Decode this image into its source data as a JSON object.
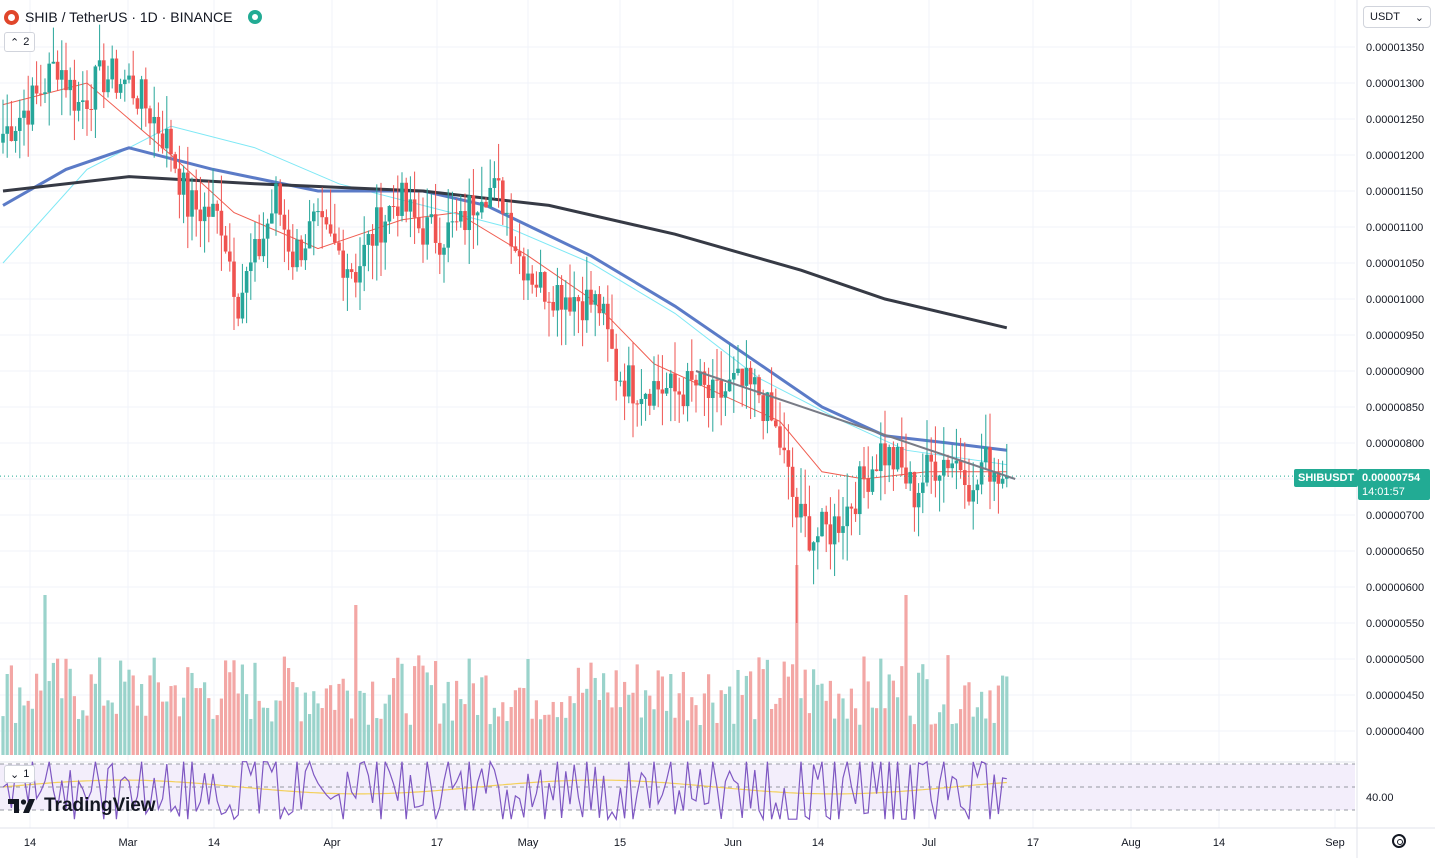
{
  "header": {
    "symbol_title": "SHIB / TetherUS · 1D · BINANCE",
    "indicator_count": "2",
    "rsi_count": "1",
    "currency": "USDT",
    "logo_text": "TradingView"
  },
  "price_tag": {
    "symbol": "SHIBUSDT",
    "price": "0.00000754",
    "countdown": "14:01:57"
  },
  "colors": {
    "up": "#26a69a",
    "down": "#ef5350",
    "ma_fast": "#f05d50",
    "ma_cyan": "#7ee8f5",
    "ma_blue": "#5b7bc7",
    "ma_black": "#363a45",
    "trendline": "#787b86",
    "rsi_line": "#7e57c2",
    "rsi_ma": "#f3d05a"
  },
  "chart_data": {
    "type": "candlestick",
    "x_axis_labels": [
      "14",
      "Mar",
      "14",
      "Apr",
      "17",
      "May",
      "15",
      "Jun",
      "14",
      "Jul",
      "17",
      "Aug",
      "14",
      "Sep"
    ],
    "price_axis_labels": [
      "0.00001350",
      "0.00001300",
      "0.00001250",
      "0.00001200",
      "0.00001150",
      "0.00001100",
      "0.00001050",
      "0.00001000",
      "0.00000950",
      "0.00000900",
      "0.00000850",
      "0.00000800",
      "0.00000750",
      "0.00000700",
      "0.00000650",
      "0.00000600",
      "0.00000550",
      "0.00000500",
      "0.00000450",
      "0.00000400"
    ],
    "rsi_axis_label": "40.00",
    "last_price": 7.54e-06,
    "close_path": [
      [
        0,
        1.23e-05
      ],
      [
        8,
        1.28e-05
      ],
      [
        13,
        1.33e-05
      ],
      [
        18,
        1.27e-05
      ],
      [
        24,
        1.31e-05
      ],
      [
        30,
        1.3e-05
      ],
      [
        35,
        1.26e-05
      ],
      [
        40,
        1.21e-05
      ],
      [
        44,
        1.13e-05
      ],
      [
        49,
        1.12e-05
      ],
      [
        52,
        1.11e-05
      ],
      [
        56,
        1e-05
      ],
      [
        61,
        1.07e-05
      ],
      [
        65,
        1.14e-05
      ],
      [
        69,
        1.06e-05
      ],
      [
        74,
        1.1e-05
      ],
      [
        79,
        1.07e-05
      ],
      [
        84,
        1.04e-05
      ],
      [
        89,
        1.1e-05
      ],
      [
        94,
        1.14e-05
      ],
      [
        99,
        1.1e-05
      ],
      [
        104,
        1.09e-05
      ],
      [
        109,
        1.1e-05
      ],
      [
        114,
        1.16e-05
      ],
      [
        119,
        1.14e-05
      ],
      [
        123,
        1.06e-05
      ],
      [
        128,
        1.02e-05
      ],
      [
        133,
        1.01e-05
      ],
      [
        138,
        1e-05
      ],
      [
        142,
        9.9e-06
      ],
      [
        146,
        9e-06
      ],
      [
        150,
        8.8e-06
      ],
      [
        155,
        8.8e-06
      ],
      [
        160,
        8.7e-06
      ],
      [
        165,
        8.8e-06
      ],
      [
        169,
        8.6e-06
      ],
      [
        174,
        8.8e-06
      ],
      [
        180,
        8.7e-06
      ],
      [
        185,
        8e-06
      ],
      [
        189,
        7e-06
      ],
      [
        193,
        6.7e-06
      ],
      [
        197,
        6.8e-06
      ],
      [
        201,
        7.1e-06
      ],
      [
        205,
        7.5e-06
      ],
      [
        209,
        7.9e-06
      ],
      [
        213,
        7.7e-06
      ],
      [
        217,
        7.3e-06
      ],
      [
        221,
        7.7e-06
      ],
      [
        225,
        7.8e-06
      ],
      [
        229,
        7.7e-06
      ],
      [
        231,
        7.2e-06
      ],
      [
        233,
        7.7e-06
      ],
      [
        235,
        7.7e-06
      ],
      [
        237,
        7.6e-06
      ],
      [
        239,
        7.54e-06
      ]
    ],
    "moving_averages": [
      {
        "color": "ma_fast",
        "points": [
          [
            0,
            1.27e-05
          ],
          [
            20,
            1.3e-05
          ],
          [
            40,
            1.2e-05
          ],
          [
            55,
            1.12e-05
          ],
          [
            75,
            1.07e-05
          ],
          [
            95,
            1.11e-05
          ],
          [
            108,
            1.12e-05
          ],
          [
            125,
            1.06e-05
          ],
          [
            140,
            1e-05
          ],
          [
            155,
            9.1e-06
          ],
          [
            170,
            8.7e-06
          ],
          [
            185,
            8.3e-06
          ],
          [
            195,
            7.6e-06
          ],
          [
            205,
            7.5e-06
          ],
          [
            220,
            7.6e-06
          ],
          [
            239,
            7.6e-06
          ]
        ]
      },
      {
        "color": "ma_cyan",
        "points": [
          [
            0,
            1.05e-05
          ],
          [
            20,
            1.18e-05
          ],
          [
            40,
            1.24e-05
          ],
          [
            60,
            1.21e-05
          ],
          [
            80,
            1.16e-05
          ],
          [
            100,
            1.13e-05
          ],
          [
            120,
            1.1e-05
          ],
          [
            140,
            1.05e-05
          ],
          [
            160,
            9.8e-06
          ],
          [
            180,
            8.9e-06
          ],
          [
            200,
            8.3e-06
          ],
          [
            215,
            7.9e-06
          ],
          [
            239,
            7.7e-06
          ]
        ]
      },
      {
        "color": "ma_blue",
        "points": [
          [
            0,
            1.13e-05
          ],
          [
            15,
            1.18e-05
          ],
          [
            30,
            1.21e-05
          ],
          [
            50,
            1.18e-05
          ],
          [
            75,
            1.15e-05
          ],
          [
            100,
            1.15e-05
          ],
          [
            115,
            1.13e-05
          ],
          [
            140,
            1.06e-05
          ],
          [
            160,
            9.9e-06
          ],
          [
            180,
            9.1e-06
          ],
          [
            195,
            8.5e-06
          ],
          [
            210,
            8.1e-06
          ],
          [
            225,
            8e-06
          ],
          [
            239,
            7.9e-06
          ]
        ]
      },
      {
        "color": "ma_black",
        "points": [
          [
            0,
            1.15e-05
          ],
          [
            30,
            1.17e-05
          ],
          [
            60,
            1.16e-05
          ],
          [
            100,
            1.15e-05
          ],
          [
            130,
            1.13e-05
          ],
          [
            160,
            1.09e-05
          ],
          [
            190,
            1.04e-05
          ],
          [
            210,
            1e-05
          ],
          [
            239,
            9.6e-06
          ]
        ]
      }
    ],
    "trendline": [
      [
        165,
        9e-06
      ],
      [
        241,
        7.5e-06
      ]
    ]
  }
}
